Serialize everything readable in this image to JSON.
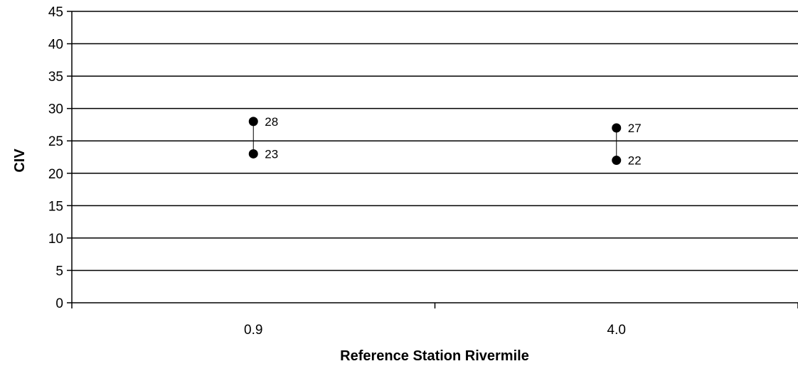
{
  "chart_data": {
    "type": "scatter",
    "title": "",
    "xlabel": "Reference Station Rivermile",
    "ylabel": "CIV",
    "categories": [
      "0.9",
      "4.0"
    ],
    "ylim": [
      0,
      45
    ],
    "y_ticks": [
      "0",
      "5",
      "10",
      "15",
      "20",
      "25",
      "30",
      "35",
      "40",
      "45"
    ],
    "grid": true,
    "legend": "none",
    "series": [
      {
        "values": [
          28,
          27
        ]
      },
      {
        "values": [
          23,
          22
        ]
      }
    ],
    "point_labels": [
      [
        "28",
        "27"
      ],
      [
        "23",
        "22"
      ]
    ],
    "connectors": "high-low line between the two points of each category",
    "colors": {
      "marker": "#000000",
      "gridline": "#000000",
      "axis": "#000000"
    }
  }
}
